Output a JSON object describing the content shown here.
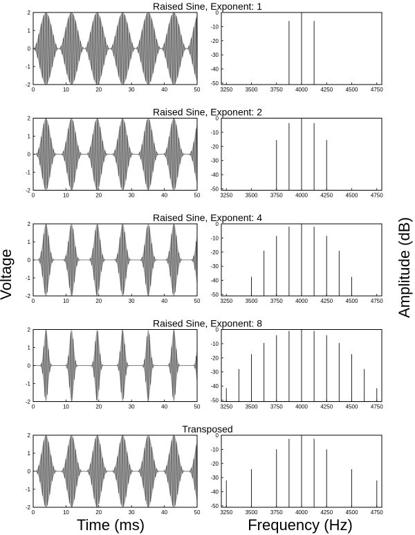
{
  "figure": {
    "ylabel_left": "Voltage",
    "ylabel_right": "Amplitude (dB)",
    "xlabel_left": "Time (ms)",
    "xlabel_right": "Frequency (Hz)"
  },
  "chart_data": [
    {
      "title": "Raised Sine, Exponent: 1",
      "waveform": {
        "type": "line",
        "xlim": [
          0,
          50
        ],
        "ylim": [
          -2,
          2
        ],
        "xticks": [
          0,
          10,
          20,
          30,
          40,
          50
        ],
        "yticks": [
          -2,
          -1,
          0,
          1,
          2
        ],
        "envelope": {
          "exponent": 1,
          "period_ms": 7.8,
          "peak": 2.0,
          "carrier_hz": 4000
        }
      },
      "spectrum": {
        "type": "bar",
        "xlim": [
          3200,
          4800
        ],
        "ylim": [
          -51,
          0
        ],
        "xticks": [
          3250,
          3500,
          3750,
          4000,
          4250,
          4500,
          4750
        ],
        "yticks": [
          0,
          -10,
          -20,
          -30,
          -40,
          -50
        ],
        "x": [
          3875,
          4000,
          4125
        ],
        "values": [
          -6,
          0,
          -6
        ]
      }
    },
    {
      "title": "Raised Sine, Exponent: 2",
      "waveform": {
        "type": "line",
        "xlim": [
          0,
          50
        ],
        "ylim": [
          -2,
          2
        ],
        "xticks": [
          0,
          10,
          20,
          30,
          40,
          50
        ],
        "yticks": [
          -2,
          -1,
          0,
          1,
          2
        ],
        "envelope": {
          "exponent": 2,
          "period_ms": 7.8,
          "peak": 2.0,
          "carrier_hz": 4000
        }
      },
      "spectrum": {
        "type": "bar",
        "xlim": [
          3200,
          4800
        ],
        "ylim": [
          -51,
          0
        ],
        "xticks": [
          3250,
          3500,
          3750,
          4000,
          4250,
          4500,
          4750
        ],
        "yticks": [
          0,
          -10,
          -20,
          -30,
          -40,
          -50
        ],
        "x": [
          3750,
          3875,
          4000,
          4125,
          4250
        ],
        "values": [
          -15.5,
          -3.5,
          0,
          -3.5,
          -15.5
        ]
      }
    },
    {
      "title": "Raised Sine, Exponent: 4",
      "waveform": {
        "type": "line",
        "xlim": [
          0,
          50
        ],
        "ylim": [
          -2,
          2
        ],
        "xticks": [
          0,
          10,
          20,
          30,
          40,
          50
        ],
        "yticks": [
          -2,
          -1,
          0,
          1,
          2
        ],
        "envelope": {
          "exponent": 4,
          "period_ms": 7.8,
          "peak": 2.0,
          "carrier_hz": 4000
        }
      },
      "spectrum": {
        "type": "bar",
        "xlim": [
          3200,
          4800
        ],
        "ylim": [
          -51,
          0
        ],
        "xticks": [
          3250,
          3500,
          3750,
          4000,
          4250,
          4500,
          4750
        ],
        "yticks": [
          0,
          -10,
          -20,
          -30,
          -40,
          -50
        ],
        "x": [
          3500,
          3625,
          3750,
          3875,
          4000,
          4125,
          4250,
          4375,
          4500
        ],
        "values": [
          -37.5,
          -19,
          -8.5,
          -2,
          0,
          -2,
          -8.5,
          -19,
          -37.5
        ]
      }
    },
    {
      "title": "Raised Sine, Exponent: 8",
      "waveform": {
        "type": "line",
        "xlim": [
          0,
          50
        ],
        "ylim": [
          -2,
          2
        ],
        "xticks": [
          0,
          10,
          20,
          30,
          40,
          50
        ],
        "yticks": [
          -2,
          -1,
          0,
          1,
          2
        ],
        "envelope": {
          "exponent": 8,
          "period_ms": 7.8,
          "peak": 2.0,
          "carrier_hz": 4000
        }
      },
      "spectrum": {
        "type": "bar",
        "xlim": [
          3200,
          4800
        ],
        "ylim": [
          -51,
          0
        ],
        "xticks": [
          3250,
          3500,
          3750,
          4000,
          4250,
          4500,
          4750
        ],
        "yticks": [
          0,
          -10,
          -20,
          -30,
          -40,
          -50
        ],
        "x": [
          3250,
          3375,
          3500,
          3625,
          3750,
          3875,
          4000,
          4125,
          4250,
          4375,
          4500,
          4625,
          4750
        ],
        "values": [
          -41.5,
          -28,
          -17.5,
          -9.5,
          -4,
          -1,
          0,
          -1,
          -4,
          -9.5,
          -17.5,
          -28,
          -41.5
        ]
      }
    },
    {
      "title": "Transposed",
      "waveform": {
        "type": "line",
        "xlim": [
          0,
          50
        ],
        "ylim": [
          -2,
          2
        ],
        "xticks": [
          0,
          10,
          20,
          30,
          40,
          50
        ],
        "yticks": [
          -2,
          -1,
          0,
          1,
          2
        ],
        "envelope": {
          "exponent": 2,
          "period_ms": 7.8,
          "peak": 2.0,
          "carrier_hz": 4000
        }
      },
      "spectrum": {
        "type": "bar",
        "xlim": [
          3200,
          4800
        ],
        "ylim": [
          -51,
          0
        ],
        "xticks": [
          3250,
          3500,
          3750,
          4000,
          4250,
          4500,
          4750
        ],
        "yticks": [
          0,
          -10,
          -20,
          -30,
          -40,
          -50
        ],
        "x": [
          3250,
          3500,
          3750,
          3875,
          4000,
          4125,
          4250,
          4500,
          4750
        ],
        "values": [
          -32,
          -24,
          -10,
          -2.5,
          0,
          -2.5,
          -10,
          -24,
          -32
        ]
      }
    }
  ]
}
